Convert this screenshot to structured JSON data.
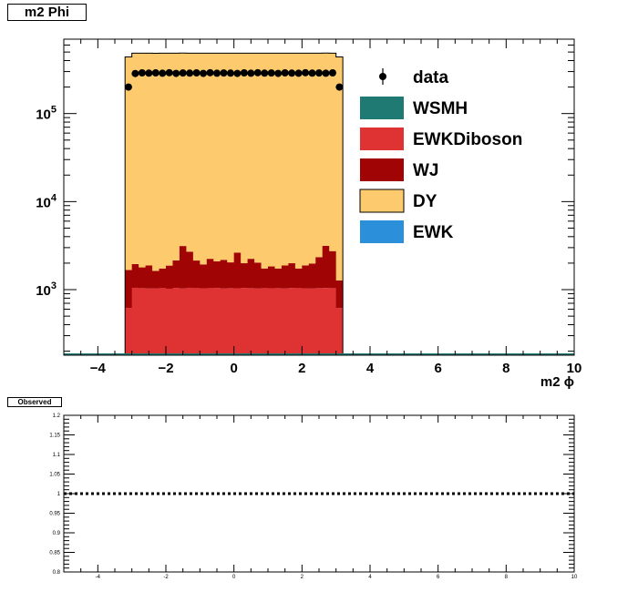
{
  "main_panel_title": "m2 Phi",
  "ratio_panel_title": "Observed",
  "colors": {
    "data": "#000000",
    "WSMH": "#1f7a74",
    "EWKDiboson": "#df3232",
    "WJ": "#a10404",
    "DY": "#fdcb6d",
    "EWK": "#2b90d9"
  },
  "chart_data": [
    {
      "type": "bar",
      "stacked": true,
      "log_y": true,
      "xlabel": "m2 ϕ",
      "ylabel": "",
      "xlim": [
        -5,
        10
      ],
      "ylim": [
        180,
        700000
      ],
      "x_ticks": [
        "−4",
        "−2",
        "0",
        "2",
        "4",
        "6",
        "8",
        "10"
      ],
      "x_tick_values": [
        -4,
        -2,
        0,
        2,
        4,
        6,
        8,
        10
      ],
      "y_tick_values": [
        1000,
        10000,
        100000
      ],
      "y_tick_labels": [
        {
          "base": "10",
          "exp": "3"
        },
        {
          "base": "10",
          "exp": "4"
        },
        {
          "base": "10",
          "exp": "5"
        }
      ],
      "bin_edges_range": [
        -3.2,
        3.2
      ],
      "bin_count": 32,
      "legend_position": "top-right",
      "series": [
        {
          "name": "EWK",
          "values": [
            0,
            0,
            0,
            0,
            0,
            0,
            0,
            0,
            0,
            0,
            0,
            0,
            0,
            0,
            0,
            0,
            0,
            0,
            0,
            0,
            0,
            0,
            0,
            0,
            0,
            0,
            0,
            0,
            0,
            0,
            0,
            0
          ]
        },
        {
          "name": "EWKDiboson",
          "values": [
            620,
            1050,
            1040,
            1030,
            1035,
            1040,
            1025,
            1045,
            1030,
            1050,
            1040,
            1035,
            1040,
            1045,
            1030,
            1040,
            1035,
            1045,
            1040,
            1030,
            1040,
            1035,
            1040,
            1030,
            1045,
            1040,
            1035,
            1030,
            1040,
            1045,
            1040,
            620
          ]
        },
        {
          "name": "WJ",
          "values": [
            1050,
            900,
            750,
            850,
            600,
            700,
            850,
            1100,
            2100,
            1650,
            1100,
            900,
            1200,
            1050,
            1150,
            1000,
            1600,
            950,
            1200,
            1000,
            700,
            800,
            700,
            850,
            950,
            700,
            850,
            950,
            1300,
            2100,
            1700,
            650
          ]
        },
        {
          "name": "DY",
          "values": [
            438000,
            483000,
            483000,
            483000,
            483000,
            483000,
            483000,
            483000,
            483000,
            483000,
            483000,
            483000,
            483000,
            483000,
            483000,
            483000,
            483000,
            483000,
            483000,
            483000,
            483000,
            483000,
            483000,
            483000,
            483000,
            483000,
            483000,
            483000,
            483000,
            483000,
            483000,
            438000
          ]
        },
        {
          "name": "WSMH",
          "values": [
            0,
            0,
            0,
            0,
            0,
            0,
            0,
            0,
            0,
            0,
            0,
            0,
            0,
            0,
            0,
            0,
            0,
            0,
            0,
            0,
            0,
            0,
            0,
            0,
            0,
            0,
            0,
            0,
            0,
            0,
            0,
            0
          ]
        },
        {
          "name": "data",
          "values": [
            200000,
            285000,
            290000,
            288000,
            290000,
            287000,
            291000,
            286000,
            289000,
            288000,
            290000,
            286000,
            291000,
            287000,
            289000,
            288000,
            286000,
            290000,
            287000,
            291000,
            288000,
            289000,
            286000,
            290000,
            288000,
            287000,
            291000,
            288000,
            289000,
            287000,
            290000,
            200000
          ]
        }
      ],
      "legend": [
        "data",
        "WSMH",
        "EWKDiboson",
        "WJ",
        "DY",
        "EWK"
      ]
    },
    {
      "type": "line",
      "xlim": [
        -5,
        10
      ],
      "ylim": [
        0.8,
        1.2
      ],
      "x_ticks": [
        "-4",
        "-2",
        "0",
        "2",
        "4",
        "6",
        "8",
        "10"
      ],
      "x_tick_values": [
        -4,
        -2,
        0,
        2,
        4,
        6,
        8,
        10
      ],
      "y_ticks": [
        "0.8",
        "0.85",
        "0.9",
        "0.95",
        "1",
        "1.05",
        "1.1",
        "1.15",
        "1.2"
      ],
      "y_tick_values": [
        0.8,
        0.85,
        0.9,
        0.95,
        1.0,
        1.05,
        1.1,
        1.15,
        1.2
      ],
      "reference_line": 1.0
    }
  ]
}
